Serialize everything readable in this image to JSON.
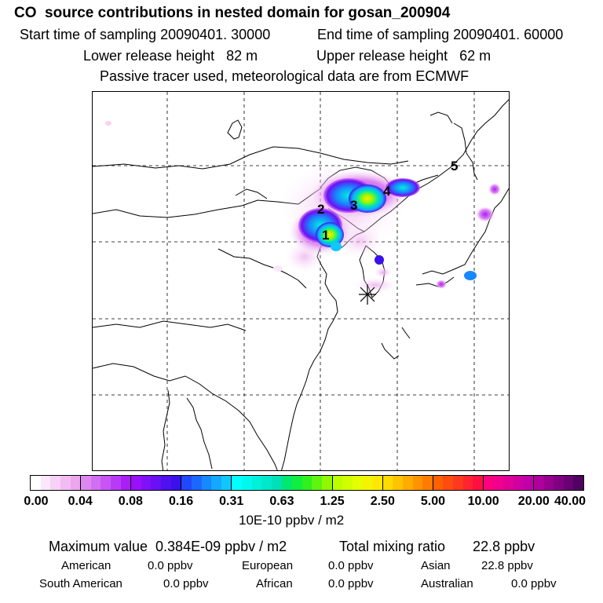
{
  "header": {
    "title": "CO  source contributions in nested domain for gosan_200904",
    "start_time": "Start time of sampling 20090401. 30000",
    "end_time": "End time of sampling 20090401. 60000",
    "lower_height": "Lower release height   82 m",
    "upper_height": "Upper release height   62 m",
    "tracer_note": "Passive tracer used, meteorological data are from ECMWF"
  },
  "map": {
    "source_labels": [
      "1",
      "2",
      "3",
      "4",
      "5"
    ],
    "receptor_marker": "receptor-star"
  },
  "colorbar": {
    "ticks": [
      "0.00",
      "0.04",
      "0.08",
      "0.16",
      "0.31",
      "0.63",
      "1.25",
      "2.50",
      "5.00",
      "10.00",
      "20.00",
      "40.00"
    ],
    "unit": "10E-10 ppbv / m2",
    "segments": [
      [
        "#ffffff",
        "#fbe8fb",
        "#f6d2f6",
        "#f1bcf1",
        "#eca6ec"
      ],
      [
        "#dd88f0",
        "#d26ef2",
        "#c655f4",
        "#b93af6",
        "#aa1ff8"
      ],
      [
        "#9a10fc",
        "#8010f8",
        "#6a10f4",
        "#5010f0",
        "#3a10ec"
      ],
      [
        "#2048ff",
        "#1c68ff",
        "#1888ff",
        "#14a8ff",
        "#10c8ff"
      ],
      [
        "#00ffff",
        "#00f8ee",
        "#00f0dc",
        "#00e8ca",
        "#00e0b8"
      ],
      [
        "#00e870",
        "#10ee40",
        "#30f020",
        "#60f410",
        "#90f800"
      ],
      [
        "#bcff00",
        "#d0ff00",
        "#e4ff00",
        "#f4f400",
        "#ffe800"
      ],
      [
        "#ffdc00",
        "#ffc400",
        "#ffac00",
        "#ff9400",
        "#ff7c00"
      ],
      [
        "#ff6000",
        "#ff4c10",
        "#ff3820",
        "#ff2430",
        "#ff1040"
      ],
      [
        "#ff0080",
        "#f0008c",
        "#e00098",
        "#d000a0",
        "#c000a8"
      ],
      [
        "#b0009c",
        "#980090",
        "#800084",
        "#6a0074",
        "#500060"
      ]
    ]
  },
  "footer": {
    "max_value": "Maximum value  0.384E-09 ppbv / m2",
    "total": "Total mixing ratio       22.8 ppbv",
    "regions": [
      {
        "name": "American",
        "value": "0.0 ppbv"
      },
      {
        "name": "European",
        "value": "0.0 ppbv"
      },
      {
        "name": "Asian",
        "value": "22.8 ppbv"
      },
      {
        "name": "South American",
        "value": "0.0 ppbv"
      },
      {
        "name": "African",
        "value": "0.0 ppbv"
      },
      {
        "name": "Australian",
        "value": "0.0 ppbv"
      }
    ]
  }
}
